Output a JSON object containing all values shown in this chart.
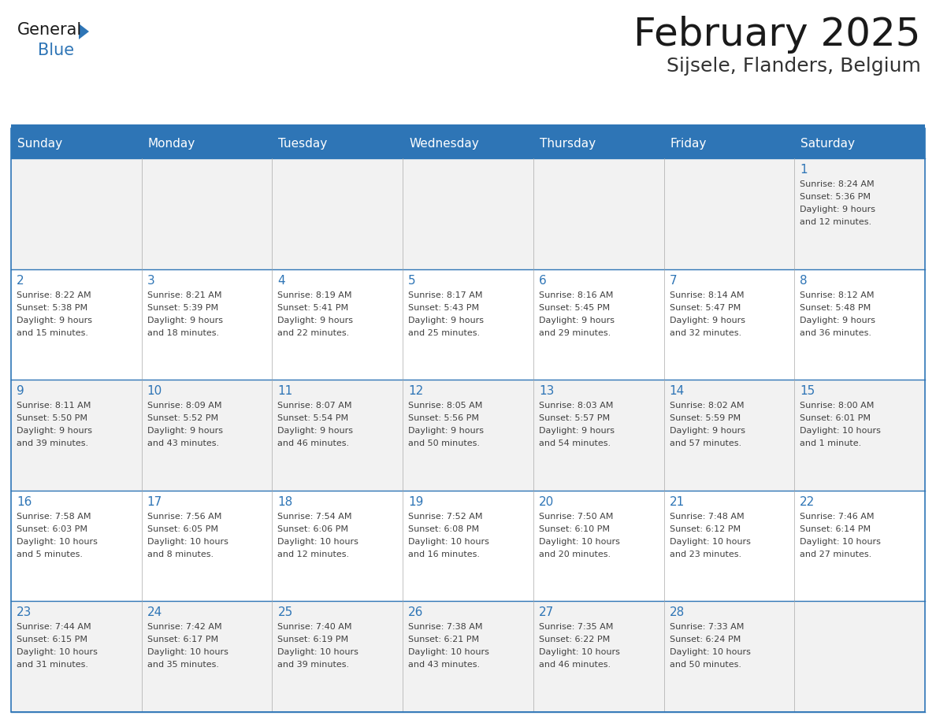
{
  "title": "February 2025",
  "subtitle": "Sijsele, Flanders, Belgium",
  "header_bg": "#2E75B6",
  "header_text_color": "#FFFFFF",
  "cell_bg_odd": "#F2F2F2",
  "cell_bg_even": "#FFFFFF",
  "day_number_color": "#2E75B6",
  "text_color": "#404040",
  "border_color": "#2E75B6",
  "light_border_color": "#AAAAAA",
  "days_of_week": [
    "Sunday",
    "Monday",
    "Tuesday",
    "Wednesday",
    "Thursday",
    "Friday",
    "Saturday"
  ],
  "weeks": [
    [
      {
        "day": null,
        "info": ""
      },
      {
        "day": null,
        "info": ""
      },
      {
        "day": null,
        "info": ""
      },
      {
        "day": null,
        "info": ""
      },
      {
        "day": null,
        "info": ""
      },
      {
        "day": null,
        "info": ""
      },
      {
        "day": 1,
        "info": "Sunrise: 8:24 AM\nSunset: 5:36 PM\nDaylight: 9 hours\nand 12 minutes."
      }
    ],
    [
      {
        "day": 2,
        "info": "Sunrise: 8:22 AM\nSunset: 5:38 PM\nDaylight: 9 hours\nand 15 minutes."
      },
      {
        "day": 3,
        "info": "Sunrise: 8:21 AM\nSunset: 5:39 PM\nDaylight: 9 hours\nand 18 minutes."
      },
      {
        "day": 4,
        "info": "Sunrise: 8:19 AM\nSunset: 5:41 PM\nDaylight: 9 hours\nand 22 minutes."
      },
      {
        "day": 5,
        "info": "Sunrise: 8:17 AM\nSunset: 5:43 PM\nDaylight: 9 hours\nand 25 minutes."
      },
      {
        "day": 6,
        "info": "Sunrise: 8:16 AM\nSunset: 5:45 PM\nDaylight: 9 hours\nand 29 minutes."
      },
      {
        "day": 7,
        "info": "Sunrise: 8:14 AM\nSunset: 5:47 PM\nDaylight: 9 hours\nand 32 minutes."
      },
      {
        "day": 8,
        "info": "Sunrise: 8:12 AM\nSunset: 5:48 PM\nDaylight: 9 hours\nand 36 minutes."
      }
    ],
    [
      {
        "day": 9,
        "info": "Sunrise: 8:11 AM\nSunset: 5:50 PM\nDaylight: 9 hours\nand 39 minutes."
      },
      {
        "day": 10,
        "info": "Sunrise: 8:09 AM\nSunset: 5:52 PM\nDaylight: 9 hours\nand 43 minutes."
      },
      {
        "day": 11,
        "info": "Sunrise: 8:07 AM\nSunset: 5:54 PM\nDaylight: 9 hours\nand 46 minutes."
      },
      {
        "day": 12,
        "info": "Sunrise: 8:05 AM\nSunset: 5:56 PM\nDaylight: 9 hours\nand 50 minutes."
      },
      {
        "day": 13,
        "info": "Sunrise: 8:03 AM\nSunset: 5:57 PM\nDaylight: 9 hours\nand 54 minutes."
      },
      {
        "day": 14,
        "info": "Sunrise: 8:02 AM\nSunset: 5:59 PM\nDaylight: 9 hours\nand 57 minutes."
      },
      {
        "day": 15,
        "info": "Sunrise: 8:00 AM\nSunset: 6:01 PM\nDaylight: 10 hours\nand 1 minute."
      }
    ],
    [
      {
        "day": 16,
        "info": "Sunrise: 7:58 AM\nSunset: 6:03 PM\nDaylight: 10 hours\nand 5 minutes."
      },
      {
        "day": 17,
        "info": "Sunrise: 7:56 AM\nSunset: 6:05 PM\nDaylight: 10 hours\nand 8 minutes."
      },
      {
        "day": 18,
        "info": "Sunrise: 7:54 AM\nSunset: 6:06 PM\nDaylight: 10 hours\nand 12 minutes."
      },
      {
        "day": 19,
        "info": "Sunrise: 7:52 AM\nSunset: 6:08 PM\nDaylight: 10 hours\nand 16 minutes."
      },
      {
        "day": 20,
        "info": "Sunrise: 7:50 AM\nSunset: 6:10 PM\nDaylight: 10 hours\nand 20 minutes."
      },
      {
        "day": 21,
        "info": "Sunrise: 7:48 AM\nSunset: 6:12 PM\nDaylight: 10 hours\nand 23 minutes."
      },
      {
        "day": 22,
        "info": "Sunrise: 7:46 AM\nSunset: 6:14 PM\nDaylight: 10 hours\nand 27 minutes."
      }
    ],
    [
      {
        "day": 23,
        "info": "Sunrise: 7:44 AM\nSunset: 6:15 PM\nDaylight: 10 hours\nand 31 minutes."
      },
      {
        "day": 24,
        "info": "Sunrise: 7:42 AM\nSunset: 6:17 PM\nDaylight: 10 hours\nand 35 minutes."
      },
      {
        "day": 25,
        "info": "Sunrise: 7:40 AM\nSunset: 6:19 PM\nDaylight: 10 hours\nand 39 minutes."
      },
      {
        "day": 26,
        "info": "Sunrise: 7:38 AM\nSunset: 6:21 PM\nDaylight: 10 hours\nand 43 minutes."
      },
      {
        "day": 27,
        "info": "Sunrise: 7:35 AM\nSunset: 6:22 PM\nDaylight: 10 hours\nand 46 minutes."
      },
      {
        "day": 28,
        "info": "Sunrise: 7:33 AM\nSunset: 6:24 PM\nDaylight: 10 hours\nand 50 minutes."
      },
      {
        "day": null,
        "info": ""
      }
    ]
  ],
  "logo_general_color": "#1A1A1A",
  "logo_blue_color": "#2E75B6",
  "logo_triangle_color": "#2E75B6"
}
